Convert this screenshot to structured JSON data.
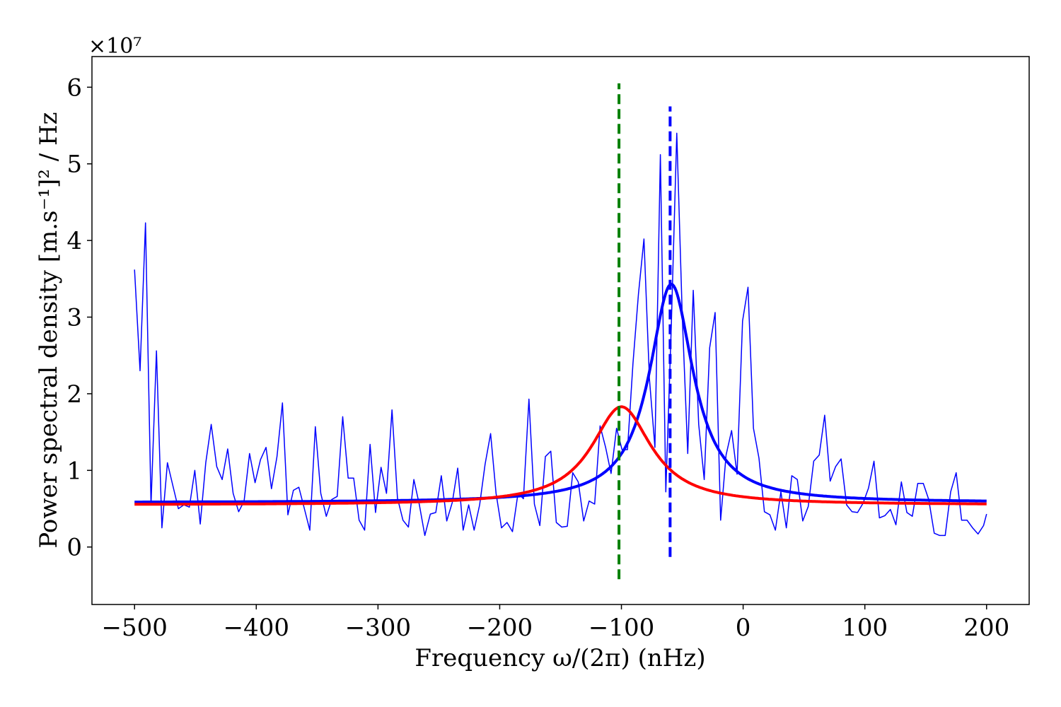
{
  "chart_data": {
    "type": "line",
    "xlabel": "Frequency ω/(2π) (nHz)",
    "ylabel": "Power spectral density [m.s⁻¹]² / Hz",
    "y_multiplier_label": "×10⁷",
    "xlim": [
      -535,
      235
    ],
    "ylim": [
      -0.75,
      6.4
    ],
    "xticks": [
      -500,
      -400,
      -300,
      -200,
      -100,
      0,
      100,
      200
    ],
    "xtick_labels": [
      "−500",
      "−400",
      "−300",
      "−200",
      "−100",
      "0",
      "100",
      "200"
    ],
    "yticks": [
      0,
      1,
      2,
      3,
      4,
      5,
      6
    ],
    "ytick_labels": [
      "0",
      "1",
      "2",
      "3",
      "4",
      "5",
      "6"
    ],
    "colors": {
      "data": "#0000ff",
      "fit_blue": "#0000ff",
      "fit_red": "#ff0000",
      "vline_green": "#008000",
      "vline_blue": "#0000ff"
    },
    "series": [
      {
        "name": "observed spectrum",
        "style": "thin",
        "x": [
          -500,
          -495.5,
          -491,
          -486.5,
          -482,
          -477.5,
          -473,
          -468.5,
          -464,
          -459.5,
          -455,
          -450.5,
          -446,
          -441.5,
          -437,
          -432.5,
          -428,
          -423.5,
          -419,
          -414.5,
          -410,
          -405.5,
          -401,
          -396.5,
          -392,
          -387.5,
          -383,
          -378.5,
          -374,
          -369.5,
          -365,
          -360.5,
          -356,
          -351.5,
          -347,
          -342.5,
          -338,
          -333.5,
          -329,
          -324.5,
          -320,
          -315.5,
          -311,
          -306.5,
          -302,
          -297.5,
          -293,
          -288.5,
          -284,
          -279.5,
          -275,
          -270.5,
          -266,
          -261.5,
          -257,
          -252.5,
          -248,
          -243.5,
          -239,
          -234.5,
          -230,
          -225.5,
          -221,
          -216.5,
          -212,
          -207.5,
          -203,
          -198.5,
          -194,
          -189.5,
          -185,
          -180.5,
          -176,
          -171.5,
          -167,
          -162.5,
          -158,
          -153.5,
          -149,
          -144.5,
          -140,
          -135.5,
          -131,
          -126.5,
          -122,
          -117.5,
          -113,
          -108.5,
          -104,
          -99.5,
          -95,
          -90.5,
          -86,
          -81.5,
          -77,
          -72.5,
          -68,
          -63.5,
          -59,
          -54.5,
          -50,
          -45.5,
          -41,
          -36.5,
          -32,
          -27.5,
          -23,
          -18.5,
          -14,
          -9.5,
          -5,
          -0.5,
          4,
          8.5,
          13,
          17.5,
          22,
          26.5,
          31,
          35.5,
          40,
          44.5,
          49,
          53.5,
          58,
          62.5,
          67,
          71.5,
          76,
          80.5,
          85,
          89.5,
          94,
          98.5,
          103,
          107.5,
          112,
          116.5,
          121,
          125.5,
          130,
          134.5,
          139,
          143.5,
          148,
          152.5,
          157,
          161.5,
          166,
          170.5,
          175,
          179.5,
          184,
          188.5,
          193,
          197.5,
          200
        ],
        "y": [
          3.62,
          2.3,
          4.23,
          0.55,
          2.56,
          0.25,
          1.1,
          0.8,
          0.5,
          0.55,
          0.52,
          1.0,
          0.3,
          1.1,
          1.6,
          1.05,
          0.88,
          1.28,
          0.7,
          0.46,
          0.6,
          1.22,
          0.84,
          1.14,
          1.3,
          0.76,
          1.18,
          1.88,
          0.42,
          0.74,
          0.78,
          0.5,
          0.22,
          1.57,
          0.7,
          0.4,
          0.62,
          0.66,
          1.7,
          0.9,
          0.9,
          0.35,
          0.22,
          1.34,
          0.45,
          1.04,
          0.7,
          1.79,
          0.64,
          0.35,
          0.26,
          0.88,
          0.55,
          0.15,
          0.43,
          0.45,
          0.93,
          0.34,
          0.58,
          1.03,
          0.22,
          0.55,
          0.22,
          0.55,
          1.08,
          1.48,
          0.7,
          0.25,
          0.32,
          0.2,
          0.7,
          0.63,
          1.93,
          0.56,
          0.28,
          1.18,
          1.25,
          0.32,
          0.26,
          0.27,
          0.97,
          0.85,
          0.34,
          0.6,
          0.56,
          1.58,
          1.3,
          0.96,
          1.55,
          1.27,
          1.27,
          2.4,
          3.3,
          4.02,
          2.2,
          1.3,
          5.12,
          0.72,
          2.9,
          5.4,
          3.0,
          1.22,
          3.35,
          1.6,
          0.88,
          2.6,
          3.06,
          0.35,
          1.2,
          1.52,
          0.95,
          2.95,
          3.39,
          1.55,
          1.16,
          0.46,
          0.42,
          0.22,
          0.72,
          0.25,
          0.93,
          0.88,
          0.34,
          0.53,
          1.12,
          1.2,
          1.72,
          0.86,
          1.05,
          1.15,
          0.55,
          0.46,
          0.45,
          0.57,
          0.77,
          1.12,
          0.38,
          0.41,
          0.49,
          0.29,
          0.85,
          0.45,
          0.4,
          0.83,
          0.83,
          0.62,
          0.18,
          0.15,
          0.15,
          0.72,
          0.97,
          0.35,
          0.35,
          0.25,
          0.17,
          0.28,
          0.43
        ]
      },
      {
        "name": "blue Lorentzian fit",
        "style": "thick",
        "function": "lorentzian",
        "center": -59,
        "amplitude": 2.85,
        "hwhm": 22,
        "offset": 0.58,
        "x_range": [
          -500,
          200
        ]
      },
      {
        "name": "red Lorentzian fit",
        "style": "thick",
        "function": "lorentzian",
        "center": -100,
        "amplitude": 1.28,
        "hwhm": 30,
        "offset": 0.55,
        "x_range": [
          -500,
          200
        ]
      }
    ],
    "vlines": [
      {
        "name": "green reference line",
        "x": -102,
        "y_range": [
          -0.42,
          6.05
        ],
        "color": "green",
        "style": "dashed"
      },
      {
        "name": "blue reference line",
        "x": -60,
        "y_range": [
          -0.13,
          5.75
        ],
        "color": "blue",
        "style": "dashed"
      }
    ]
  }
}
